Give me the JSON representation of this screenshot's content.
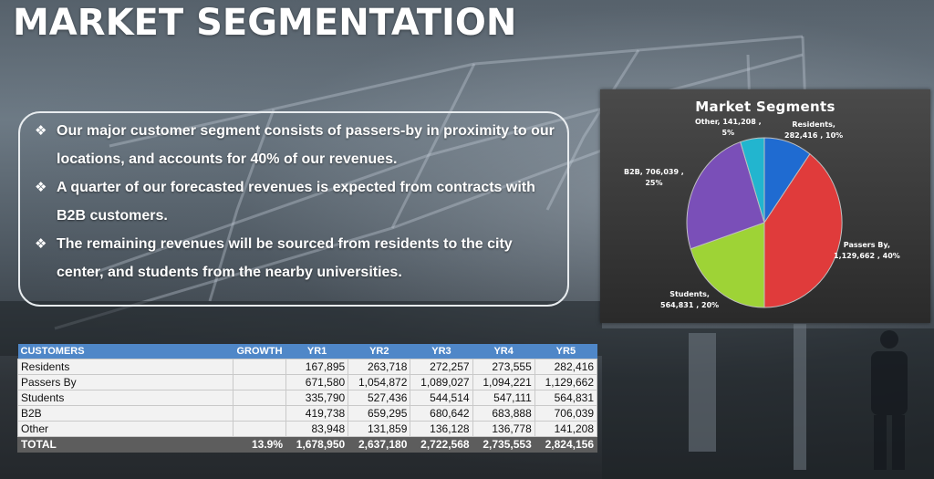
{
  "title": "MARKET SEGMENTATION",
  "bullets": [
    "Our major customer segment consists of passers-by in proximity to our locations, and accounts for 40% of our revenues.",
    "A quarter of our forecasted revenues is expected from contracts with B2B customers.",
    "The remaining revenues will be sourced from residents to the city center, and students from the nearby universities."
  ],
  "bullet_icon": "diamond-bullet-icon",
  "chart_data": {
    "type": "pie",
    "title": "Market Segments",
    "slices": [
      {
        "name": "Residents",
        "value": 282416,
        "label": "282,416",
        "pct": "10%",
        "color": "#1f6bd1"
      },
      {
        "name": "Passers By",
        "value": 1129662,
        "label": "1,129,662",
        "pct": "40%",
        "color": "#e03b3b"
      },
      {
        "name": "Students",
        "value": 564831,
        "label": "564,831",
        "pct": "20%",
        "color": "#9ed336"
      },
      {
        "name": "B2B",
        "value": 706039,
        "label": "706,039",
        "pct": "25%",
        "color": "#7a4fb8"
      },
      {
        "name": "Other",
        "value": 141208,
        "label": "141,208",
        "pct": "5%",
        "color": "#22b5cf"
      }
    ],
    "data_labels": {
      "residents": {
        "line1": "Residents,",
        "line2": "282,416 , 10%"
      },
      "passers": {
        "line1": "Passers By,",
        "line2": "1,129,662 , 40%"
      },
      "students": {
        "line1": "Students,",
        "line2": "564,831 , 20%"
      },
      "b2b": {
        "line1": "B2B, 706,039 ,",
        "line2": "25%"
      },
      "other": {
        "line1": "Other, 141,208 ,",
        "line2": "5%"
      }
    }
  },
  "table": {
    "headers": [
      "CUSTOMERS",
      "GROWTH",
      "YR1",
      "YR2",
      "YR3",
      "YR4",
      "YR5"
    ],
    "rows": [
      [
        "Residents",
        "",
        "167,895",
        "263,718",
        "272,257",
        "273,555",
        "282,416"
      ],
      [
        "Passers By",
        "",
        "671,580",
        "1,054,872",
        "1,089,027",
        "1,094,221",
        "1,129,662"
      ],
      [
        "Students",
        "",
        "335,790",
        "527,436",
        "544,514",
        "547,111",
        "564,831"
      ],
      [
        "B2B",
        "",
        "419,738",
        "659,295",
        "680,642",
        "683,888",
        "706,039"
      ],
      [
        "Other",
        "",
        "83,948",
        "131,859",
        "136,128",
        "136,778",
        "141,208"
      ]
    ],
    "total": [
      "TOTAL",
      "13.9%",
      "1,678,950",
      "2,637,180",
      "2,722,568",
      "2,735,553",
      "2,824,156"
    ]
  },
  "colors": {
    "table_header": "#4f87c8",
    "table_total": "#5d5d5d",
    "chart_background": "#333333"
  }
}
